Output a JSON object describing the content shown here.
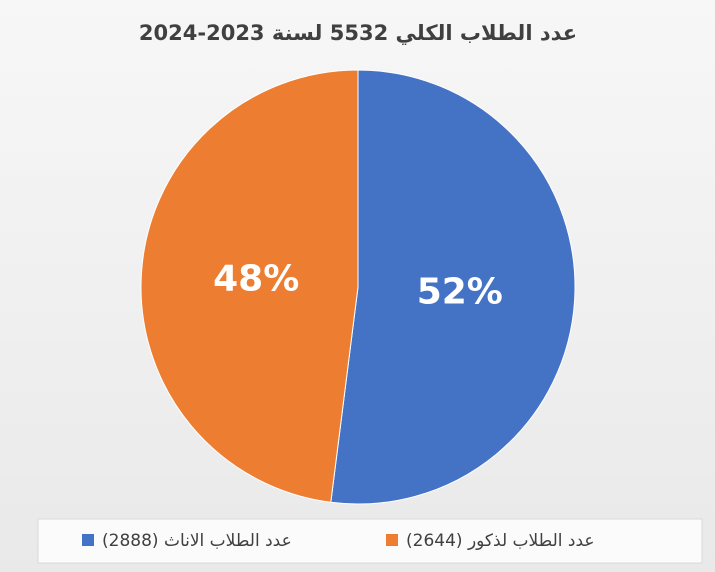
{
  "chart_data": {
    "type": "pie",
    "title": "عدد الطلاب الكلي 5532 لسنة 2023-2024",
    "categories": [
      "عدد الطلاب الاناث (2888)",
      "عدد الطلاب لذكور (2644)"
    ],
    "values": [
      52,
      48
    ],
    "value_labels": [
      "52%",
      "48%"
    ],
    "colors": [
      "#4472c4",
      "#ed7d31"
    ],
    "legend": "bottom"
  }
}
